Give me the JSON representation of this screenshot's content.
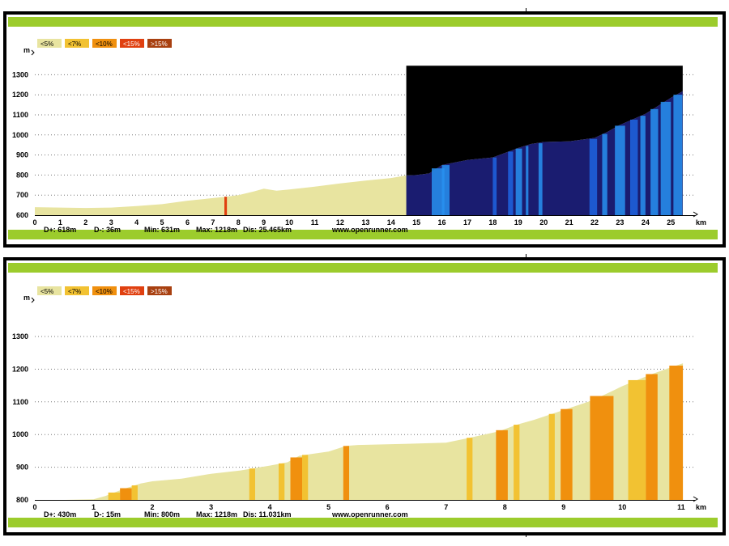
{
  "colors": {
    "lt5": "#e8e4a0",
    "lt7": "#f2c232",
    "lt10": "#f0900e",
    "lt15": "#e04010",
    "gt15": "#a84010",
    "band": "#9ccc2c",
    "dark_bg": "#000000",
    "dark_fill": "#1a1c70",
    "blue_stripe": "#1e64e0",
    "blue_stripe_light": "#2890f0"
  },
  "legend": [
    {
      "label": "<5%",
      "color_key": "lt5"
    },
    {
      "label": "<7%",
      "color_key": "lt7"
    },
    {
      "label": "<10%",
      "color_key": "lt10"
    },
    {
      "label": "<15%",
      "color_key": "lt15"
    },
    {
      "label": ">15%",
      "color_key": "gt15"
    }
  ],
  "chart_data": [
    {
      "type": "area",
      "ylabel": "m",
      "xlabel": "km",
      "xlim": [
        0,
        25.465
      ],
      "ylim": [
        600,
        1350
      ],
      "yticks": [
        600,
        700,
        800,
        900,
        1000,
        1100,
        1200,
        1300
      ],
      "xticks": [
        0,
        1,
        2,
        3,
        4,
        5,
        6,
        7,
        8,
        9,
        10,
        11,
        12,
        13,
        14,
        15,
        16,
        17,
        18,
        19,
        20,
        21,
        22,
        23,
        24,
        25
      ],
      "grid": true,
      "highlight_from_km": 14.6,
      "profile": [
        [
          0,
          640
        ],
        [
          1,
          638
        ],
        [
          2,
          636
        ],
        [
          3,
          638
        ],
        [
          4,
          645
        ],
        [
          5,
          655
        ],
        [
          6,
          672
        ],
        [
          7,
          685
        ],
        [
          7.5,
          692
        ],
        [
          8,
          700
        ],
        [
          8.6,
          718
        ],
        [
          9,
          732
        ],
        [
          9.5,
          722
        ],
        [
          10,
          728
        ],
        [
          11,
          742
        ],
        [
          12,
          758
        ],
        [
          13,
          772
        ],
        [
          14,
          785
        ],
        [
          14.6,
          798
        ],
        [
          15,
          800
        ],
        [
          15.5,
          808
        ],
        [
          16,
          850
        ],
        [
          17,
          875
        ],
        [
          18,
          888
        ],
        [
          19,
          935
        ],
        [
          19.5,
          955
        ],
        [
          20,
          965
        ],
        [
          21,
          968
        ],
        [
          22,
          985
        ],
        [
          22.5,
          1015
        ],
        [
          23,
          1050
        ],
        [
          24,
          1105
        ],
        [
          25,
          1185
        ],
        [
          25.465,
          1218
        ]
      ],
      "steep_segments": [
        {
          "from": 7.45,
          "to": 7.55,
          "color_key": "lt15"
        }
      ],
      "stats": {
        "d_plus": "D+: 618m",
        "d_minus": "D-: 36m",
        "min": "Min: 631m",
        "max": "Max: 1218m",
        "dis": "Dis: 25.465km",
        "url": "www.openrunner.com"
      }
    },
    {
      "type": "area",
      "ylabel": "m",
      "xlabel": "km",
      "xlim": [
        0,
        11.031
      ],
      "ylim": [
        800,
        1350
      ],
      "yticks": [
        800,
        900,
        1000,
        1100,
        1200,
        1300
      ],
      "xticks": [
        0,
        1,
        2,
        3,
        4,
        5,
        6,
        7,
        8,
        9,
        10,
        11
      ],
      "grid": true,
      "profile": [
        [
          0,
          800
        ],
        [
          0.5,
          800
        ],
        [
          1,
          802
        ],
        [
          1.2,
          812
        ],
        [
          1.5,
          833
        ],
        [
          1.8,
          850
        ],
        [
          2,
          857
        ],
        [
          2.5,
          865
        ],
        [
          3,
          880
        ],
        [
          3.5,
          890
        ],
        [
          4,
          905
        ],
        [
          4.3,
          915
        ],
        [
          4.5,
          935
        ],
        [
          5,
          948
        ],
        [
          5.3,
          965
        ],
        [
          5.5,
          968
        ],
        [
          6,
          970
        ],
        [
          7,
          975
        ],
        [
          7.4,
          990
        ],
        [
          7.9,
          1010
        ],
        [
          8.2,
          1030
        ],
        [
          8.5,
          1045
        ],
        [
          9,
          1075
        ],
        [
          9.5,
          1105
        ],
        [
          10,
          1148
        ],
        [
          10.5,
          1185
        ],
        [
          11.031,
          1218
        ]
      ],
      "steep_segments": [
        {
          "from": 1.25,
          "to": 1.45,
          "color_key": "lt7"
        },
        {
          "from": 1.45,
          "to": 1.65,
          "color_key": "lt10"
        },
        {
          "from": 1.65,
          "to": 1.75,
          "color_key": "lt7"
        },
        {
          "from": 3.65,
          "to": 3.75,
          "color_key": "lt7"
        },
        {
          "from": 4.15,
          "to": 4.25,
          "color_key": "lt7"
        },
        {
          "from": 4.35,
          "to": 4.55,
          "color_key": "lt10"
        },
        {
          "from": 4.55,
          "to": 4.65,
          "color_key": "lt7"
        },
        {
          "from": 5.25,
          "to": 5.35,
          "color_key": "lt10"
        },
        {
          "from": 7.35,
          "to": 7.45,
          "color_key": "lt7"
        },
        {
          "from": 7.85,
          "to": 8.05,
          "color_key": "lt10"
        },
        {
          "from": 8.15,
          "to": 8.25,
          "color_key": "lt7"
        },
        {
          "from": 8.75,
          "to": 8.85,
          "color_key": "lt7"
        },
        {
          "from": 8.95,
          "to": 9.15,
          "color_key": "lt10"
        },
        {
          "from": 9.45,
          "to": 9.85,
          "color_key": "lt10"
        },
        {
          "from": 10.1,
          "to": 10.4,
          "color_key": "lt7"
        },
        {
          "from": 10.4,
          "to": 10.6,
          "color_key": "lt10"
        },
        {
          "from": 10.8,
          "to": 11.031,
          "color_key": "lt10"
        }
      ],
      "stats": {
        "d_plus": "D+: 430m",
        "d_minus": "D-: 15m",
        "min": "Min: 800m",
        "max": "Max: 1218m",
        "dis": "Dis: 11.031km",
        "url": "www.openrunner.com"
      }
    }
  ]
}
